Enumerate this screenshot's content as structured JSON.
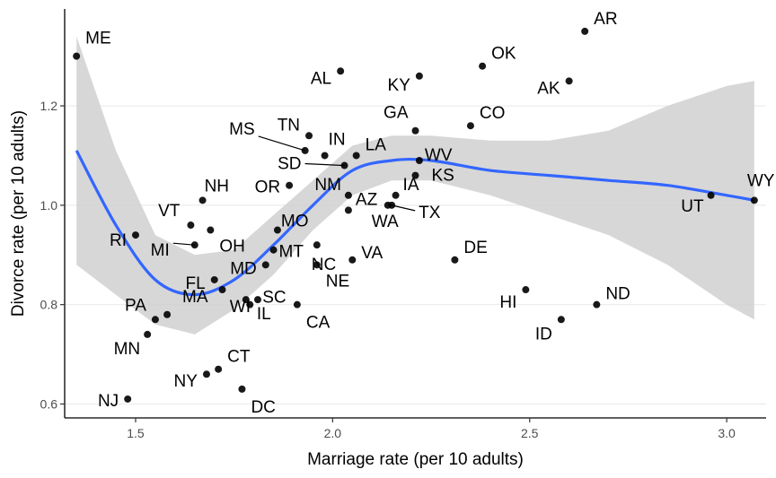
{
  "chart_data": {
    "type": "scatter",
    "title": "",
    "xlabel": "Marriage rate (per 10 adults)",
    "ylabel": "Divorce rate (per 10 adults)",
    "xlim": [
      1.32,
      3.1
    ],
    "ylim": [
      0.572,
      1.395
    ],
    "x_ticks": [
      1.5,
      2.0,
      2.5,
      3.0
    ],
    "x_tick_labels": [
      "1.5",
      "2.0",
      "2.5",
      "3.0"
    ],
    "y_ticks": [
      0.6,
      0.8,
      1.0,
      1.2
    ],
    "y_tick_labels": [
      "0.6",
      "0.8",
      "1.0",
      "1.2"
    ],
    "grid": "horizontal major lines only",
    "colors": {
      "points": "#000000",
      "smooth_line": "#3366ff",
      "ribbon": "#d0d0d0",
      "grid": "#ebebeb",
      "axis": "#000000"
    },
    "points": [
      {
        "label": "ME",
        "x": 1.35,
        "y": 1.3
      },
      {
        "label": "AR",
        "x": 2.64,
        "y": 1.35
      },
      {
        "label": "OK",
        "x": 2.38,
        "y": 1.28
      },
      {
        "label": "AL",
        "x": 2.02,
        "y": 1.27
      },
      {
        "label": "KY",
        "x": 2.22,
        "y": 1.26
      },
      {
        "label": "AK",
        "x": 2.6,
        "y": 1.25
      },
      {
        "label": "CO",
        "x": 2.35,
        "y": 1.16
      },
      {
        "label": "GA",
        "x": 2.21,
        "y": 1.15
      },
      {
        "label": "TN",
        "x": 1.94,
        "y": 1.14
      },
      {
        "label": "MS",
        "x": 1.93,
        "y": 1.11
      },
      {
        "label": "IN",
        "x": 1.98,
        "y": 1.1
      },
      {
        "label": "LA",
        "x": 2.06,
        "y": 1.1
      },
      {
        "label": "SD",
        "x": 2.03,
        "y": 1.08
      },
      {
        "label": "WV",
        "x": 2.22,
        "y": 1.09
      },
      {
        "label": "KS",
        "x": 2.21,
        "y": 1.06
      },
      {
        "label": "OR",
        "x": 1.89,
        "y": 1.04
      },
      {
        "label": "NM",
        "x": 2.04,
        "y": 1.02
      },
      {
        "label": "AZ",
        "x": 2.04,
        "y": 0.99
      },
      {
        "label": "IA",
        "x": 2.16,
        "y": 1.02
      },
      {
        "label": "TX",
        "x": 2.15,
        "y": 1.0
      },
      {
        "label": "WA",
        "x": 2.14,
        "y": 1.0
      },
      {
        "label": "NH",
        "x": 1.67,
        "y": 1.01
      },
      {
        "label": "WY",
        "x": 3.07,
        "y": 1.01
      },
      {
        "label": "UT",
        "x": 2.96,
        "y": 1.02
      },
      {
        "label": "VT",
        "x": 1.64,
        "y": 0.96
      },
      {
        "label": "OH",
        "x": 1.69,
        "y": 0.95
      },
      {
        "label": "MO",
        "x": 1.86,
        "y": 0.95
      },
      {
        "label": "RI",
        "x": 1.5,
        "y": 0.94
      },
      {
        "label": "MI",
        "x": 1.65,
        "y": 0.92
      },
      {
        "label": "MT",
        "x": 1.85,
        "y": 0.91
      },
      {
        "label": "NC",
        "x": 1.96,
        "y": 0.92
      },
      {
        "label": "DE",
        "x": 2.31,
        "y": 0.89
      },
      {
        "label": "VA",
        "x": 2.05,
        "y": 0.89
      },
      {
        "label": "MD",
        "x": 1.83,
        "y": 0.88
      },
      {
        "label": "NE",
        "x": 1.96,
        "y": 0.88
      },
      {
        "label": "FL",
        "x": 1.7,
        "y": 0.85
      },
      {
        "label": "HI",
        "x": 2.49,
        "y": 0.83
      },
      {
        "label": "MA",
        "x": 1.72,
        "y": 0.83
      },
      {
        "label": "ND",
        "x": 2.67,
        "y": 0.8
      },
      {
        "label": "WI",
        "x": 1.81,
        "y": 0.81
      },
      {
        "label": "SC",
        "x": 1.79,
        "y": 0.8
      },
      {
        "label": "IL",
        "x": 1.78,
        "y": 0.81
      },
      {
        "label": "CA",
        "x": 1.91,
        "y": 0.8
      },
      {
        "label": "PA",
        "x": 1.58,
        "y": 0.78
      },
      {
        "label": "ID",
        "x": 2.58,
        "y": 0.77
      },
      {
        "label": "PA2",
        "x": 1.55,
        "y": 0.77
      },
      {
        "label": "MN",
        "x": 1.53,
        "y": 0.74
      },
      {
        "label": "CT",
        "x": 1.71,
        "y": 0.67
      },
      {
        "label": "NY",
        "x": 1.68,
        "y": 0.66
      },
      {
        "label": "DC",
        "x": 1.77,
        "y": 0.63
      },
      {
        "label": "NJ",
        "x": 1.48,
        "y": 0.61
      }
    ],
    "labels": [
      {
        "text": "ME",
        "for": "ME"
      },
      {
        "text": "AR",
        "for": "AR"
      },
      {
        "text": "OK",
        "for": "OK"
      },
      {
        "text": "AL",
        "for": "AL"
      },
      {
        "text": "KY",
        "for": "KY"
      },
      {
        "text": "AK",
        "for": "AK"
      },
      {
        "text": "CO",
        "for": "CO"
      },
      {
        "text": "GA",
        "for": "GA"
      },
      {
        "text": "TN",
        "for": "TN"
      },
      {
        "text": "MS",
        "for": "MS"
      },
      {
        "text": "IN",
        "for": "IN"
      },
      {
        "text": "LA",
        "for": "LA"
      },
      {
        "text": "SD",
        "for": "SD"
      },
      {
        "text": "WV",
        "for": "WV"
      },
      {
        "text": "KS",
        "for": "KS"
      },
      {
        "text": "OR",
        "for": "OR"
      },
      {
        "text": "NM",
        "for": "NM"
      },
      {
        "text": "AZ",
        "for": "AZ"
      },
      {
        "text": "IA",
        "for": "IA"
      },
      {
        "text": "TX",
        "for": "TX"
      },
      {
        "text": "WA",
        "for": "WA"
      },
      {
        "text": "NH",
        "for": "NH"
      },
      {
        "text": "WY",
        "for": "WY"
      },
      {
        "text": "UT",
        "for": "UT"
      },
      {
        "text": "VT",
        "for": "VT"
      },
      {
        "text": "OH",
        "for": "OH"
      },
      {
        "text": "MO",
        "for": "MO"
      },
      {
        "text": "RI",
        "for": "RI"
      },
      {
        "text": "MI",
        "for": "MI"
      },
      {
        "text": "MT",
        "for": "MT"
      },
      {
        "text": "NC",
        "for": "NC"
      },
      {
        "text": "DE",
        "for": "DE"
      },
      {
        "text": "VA",
        "for": "VA"
      },
      {
        "text": "MD",
        "for": "MD"
      },
      {
        "text": "NE",
        "for": "NE"
      },
      {
        "text": "FL",
        "for": "FL"
      },
      {
        "text": "HI",
        "for": "HI"
      },
      {
        "text": "MA",
        "for": "MA"
      },
      {
        "text": "ND",
        "for": "ND"
      },
      {
        "text": "WI",
        "for": "WI"
      },
      {
        "text": "SC",
        "for": "SC"
      },
      {
        "text": "IL",
        "for": "IL"
      },
      {
        "text": "CA",
        "for": "CA"
      },
      {
        "text": "PA",
        "for": "PA2"
      },
      {
        "text": "ID",
        "for": "ID"
      },
      {
        "text": "MN",
        "for": "MN"
      },
      {
        "text": "CT",
        "for": "CT"
      },
      {
        "text": "NY",
        "for": "NY"
      },
      {
        "text": "DC",
        "for": "DC"
      },
      {
        "text": "NJ",
        "for": "NJ"
      }
    ],
    "smooth": {
      "x": [
        1.35,
        1.45,
        1.55,
        1.65,
        1.75,
        1.85,
        1.95,
        2.05,
        2.15,
        2.25,
        2.4,
        2.55,
        2.7,
        2.85,
        3.0,
        3.07
      ],
      "y": [
        1.11,
        0.96,
        0.85,
        0.82,
        0.85,
        0.92,
        1.0,
        1.07,
        1.09,
        1.09,
        1.07,
        1.06,
        1.05,
        1.04,
        1.02,
        1.01
      ],
      "lower": [
        0.88,
        0.82,
        0.76,
        0.74,
        0.79,
        0.86,
        0.95,
        1.02,
        1.05,
        1.05,
        1.02,
        0.98,
        0.94,
        0.88,
        0.8,
        0.77
      ],
      "upper": [
        1.34,
        1.11,
        0.94,
        0.9,
        0.91,
        0.98,
        1.05,
        1.12,
        1.14,
        1.14,
        1.13,
        1.13,
        1.15,
        1.2,
        1.24,
        1.25
      ]
    }
  }
}
